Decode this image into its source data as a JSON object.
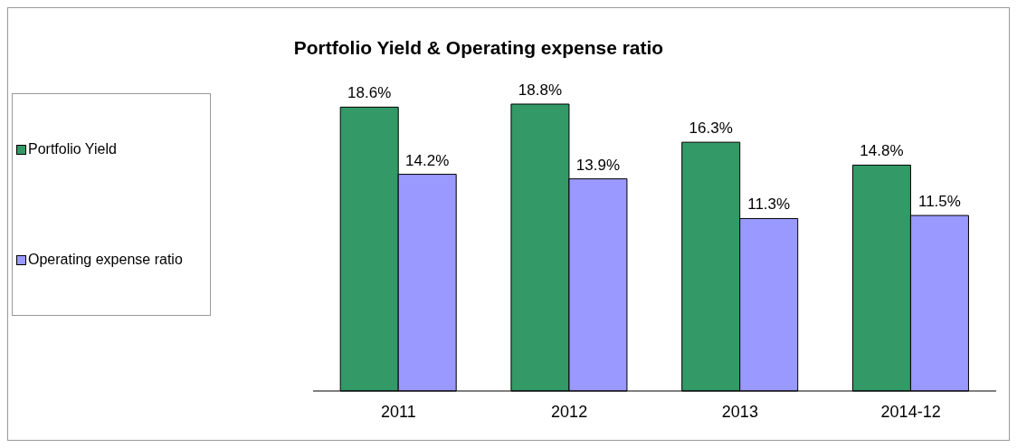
{
  "chart_data": {
    "type": "bar",
    "title": "Portfolio Yield & Operating expense ratio",
    "categories": [
      "2011",
      "2012",
      "2013",
      "2014-12"
    ],
    "series": [
      {
        "name": "Portfolio Yield",
        "color": "#339966",
        "values": [
          18.6,
          18.8,
          16.3,
          14.8
        ],
        "value_labels": [
          "18.6%",
          "18.8%",
          "16.3%",
          "14.8%"
        ]
      },
      {
        "name": "Operating expense ratio",
        "color": "#9999ff",
        "values": [
          14.2,
          13.9,
          11.3,
          11.5
        ],
        "value_labels": [
          "14.2%",
          "13.9%",
          "11.3%",
          "11.5%"
        ]
      }
    ],
    "tick_labels": "x",
    "legend": "left",
    "grid": false
  }
}
